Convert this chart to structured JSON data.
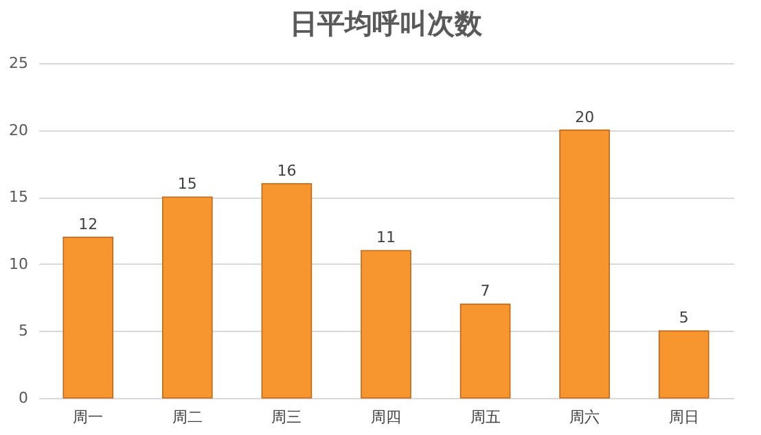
{
  "chart_data": {
    "type": "bar",
    "title": "日平均呼叫次数",
    "categories": [
      "周一",
      "周二",
      "周三",
      "周四",
      "周五",
      "周六",
      "周日"
    ],
    "values": [
      12,
      15,
      16,
      11,
      7,
      20,
      5
    ],
    "color": "#f7962e",
    "ylim": [
      0,
      25
    ],
    "yticks": [
      0,
      5,
      10,
      15,
      20,
      25
    ],
    "grid": "y",
    "data_labels": true
  }
}
